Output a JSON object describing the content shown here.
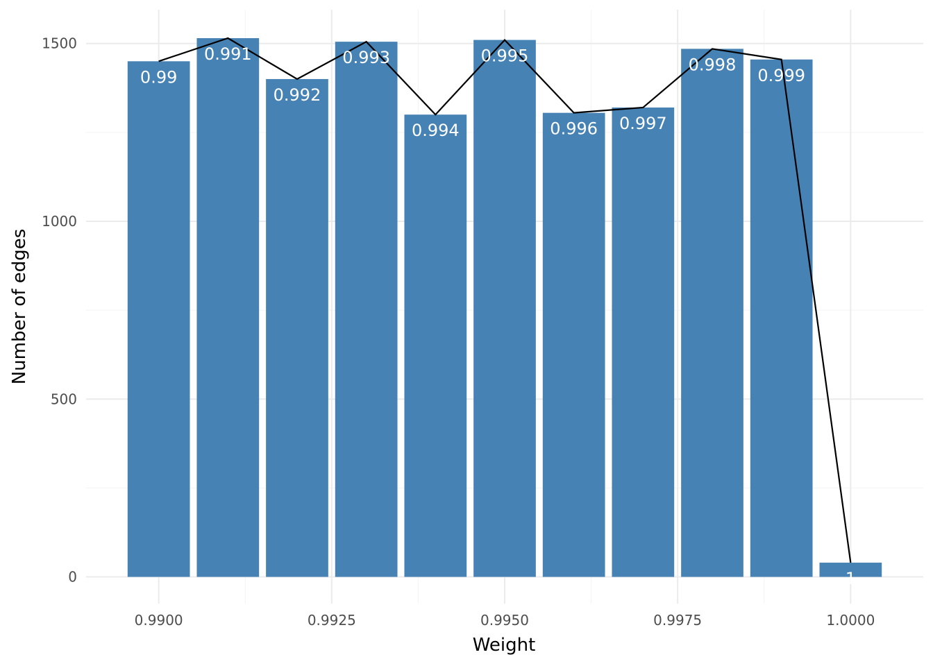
{
  "chart_data": {
    "type": "bar",
    "title": "",
    "xlabel": "Weight",
    "ylabel": "Number of edges",
    "categories": [
      "0.99",
      "0.991",
      "0.992",
      "0.993",
      "0.994",
      "0.995",
      "0.996",
      "0.997",
      "0.998",
      "0.999",
      "1"
    ],
    "x": [
      0.99,
      0.991,
      0.992,
      0.993,
      0.994,
      0.995,
      0.996,
      0.997,
      0.998,
      0.999,
      1.0
    ],
    "values": [
      1450,
      1515,
      1400,
      1505,
      1300,
      1510,
      1305,
      1320,
      1485,
      1455,
      40
    ],
    "bar_labels": [
      "0.99",
      "0.991",
      "0.992",
      "0.993",
      "0.994",
      "0.995",
      "0.996",
      "0.997",
      "0.998",
      "0.999",
      "1"
    ],
    "overlay_line": true,
    "xlim": [
      0.98895,
      1.00105
    ],
    "ylim": [
      -75,
      1595
    ],
    "x_ticks": [
      0.99,
      0.9925,
      0.995,
      0.9975,
      1.0
    ],
    "x_tick_labels": [
      "0.9900",
      "0.9925",
      "0.9950",
      "0.9975",
      "1.0000"
    ],
    "y_ticks": [
      0,
      500,
      1000,
      1500
    ],
    "y_tick_labels": [
      "0",
      "500",
      "1000",
      "1500"
    ],
    "grid": true,
    "legend": "none",
    "colors": {
      "bar": "#4682b4",
      "line": "#000000",
      "grid_major": "#ebebeb",
      "grid_minor": "#f5f5f5",
      "label": "#ffffff"
    }
  }
}
